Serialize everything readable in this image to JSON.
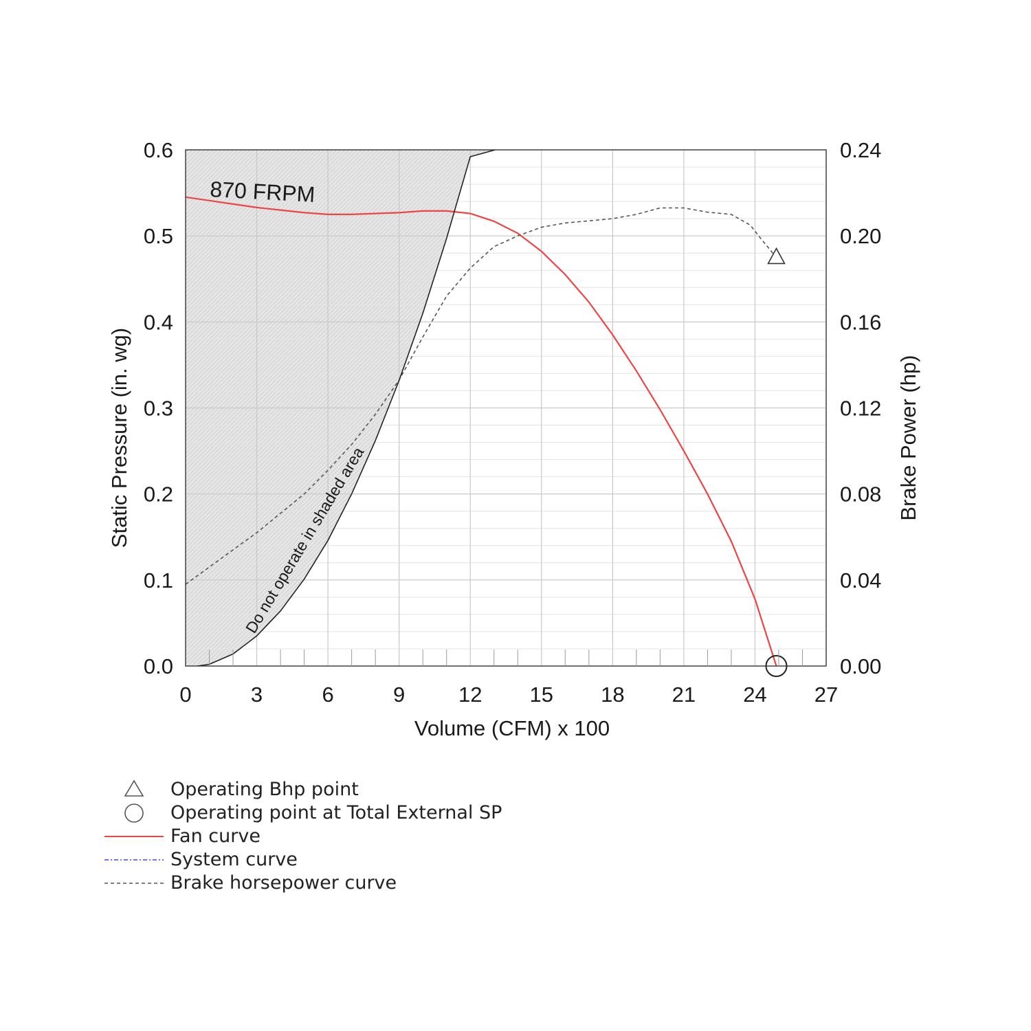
{
  "chart_data": {
    "type": "line",
    "xlabel": "Volume (CFM) x 100",
    "ylabel_left": "Static Pressure (in. wg)",
    "ylabel_right": "Brake Power (hp)",
    "xlim": [
      0,
      27
    ],
    "ylim_left": [
      0,
      0.6
    ],
    "ylim_right": [
      0,
      0.24
    ],
    "x_ticks": [
      "0",
      "3",
      "6",
      "9",
      "12",
      "15",
      "18",
      "21",
      "24",
      "27"
    ],
    "y_left_ticks": [
      "0.0",
      "0.1",
      "0.2",
      "0.3",
      "0.4",
      "0.5",
      "0.6"
    ],
    "y_right_ticks": [
      "0.00",
      "0.04",
      "0.08",
      "0.12",
      "0.16",
      "0.20",
      "0.24"
    ],
    "grid": true,
    "annotations": {
      "speed": "870 FRPM",
      "shaded_area": "Do not operate in shaded area"
    },
    "series": [
      {
        "name": "Fan curve",
        "axis": "left",
        "color": "#ee4444",
        "style": "solid",
        "points": [
          [
            0,
            0.545
          ],
          [
            1,
            0.541
          ],
          [
            2,
            0.537
          ],
          [
            3,
            0.533
          ],
          [
            4,
            0.53
          ],
          [
            5,
            0.527
          ],
          [
            6,
            0.525
          ],
          [
            7,
            0.525
          ],
          [
            8,
            0.526
          ],
          [
            9,
            0.527
          ],
          [
            10,
            0.529
          ],
          [
            11,
            0.529
          ],
          [
            12,
            0.526
          ],
          [
            13,
            0.517
          ],
          [
            14,
            0.503
          ],
          [
            15,
            0.482
          ],
          [
            16,
            0.455
          ],
          [
            17,
            0.423
          ],
          [
            18,
            0.385
          ],
          [
            19,
            0.343
          ],
          [
            20,
            0.298
          ],
          [
            21,
            0.25
          ],
          [
            22,
            0.2
          ],
          [
            23,
            0.145
          ],
          [
            24,
            0.078
          ],
          [
            24.9,
            0.0
          ]
        ]
      },
      {
        "name": "Brake horsepower curve",
        "axis": "right",
        "color": "#555555",
        "style": "dashed",
        "points": [
          [
            0,
            0.038
          ],
          [
            1,
            0.046
          ],
          [
            2,
            0.054
          ],
          [
            3,
            0.062
          ],
          [
            4,
            0.071
          ],
          [
            5,
            0.08
          ],
          [
            6,
            0.091
          ],
          [
            7,
            0.103
          ],
          [
            8,
            0.117
          ],
          [
            9,
            0.133
          ],
          [
            10,
            0.153
          ],
          [
            11,
            0.172
          ],
          [
            12,
            0.185
          ],
          [
            13,
            0.195
          ],
          [
            14,
            0.2
          ],
          [
            15,
            0.204
          ],
          [
            16,
            0.206
          ],
          [
            17,
            0.207
          ],
          [
            18,
            0.208
          ],
          [
            19,
            0.21
          ],
          [
            20,
            0.213
          ],
          [
            21,
            0.213
          ],
          [
            22,
            0.211
          ],
          [
            23,
            0.21
          ],
          [
            23.8,
            0.205
          ],
          [
            24.3,
            0.198
          ],
          [
            24.9,
            0.19
          ]
        ]
      },
      {
        "name": "Do not operate boundary",
        "axis": "left",
        "color": "#222222",
        "style": "solid",
        "points": [
          [
            0.5,
            0.0
          ],
          [
            1,
            0.002
          ],
          [
            2,
            0.014
          ],
          [
            3,
            0.035
          ],
          [
            4,
            0.064
          ],
          [
            5,
            0.101
          ],
          [
            6,
            0.146
          ],
          [
            7,
            0.2
          ],
          [
            8,
            0.262
          ],
          [
            9,
            0.332
          ],
          [
            10,
            0.41
          ],
          [
            11,
            0.497
          ],
          [
            12,
            0.592
          ],
          [
            13.05,
            0.6
          ]
        ]
      }
    ],
    "markers": [
      {
        "label": "Operating Bhp point",
        "shape": "triangle",
        "axis": "right",
        "x": 24.9,
        "y": 0.19
      },
      {
        "label": "Operating point at Total External SP",
        "shape": "circle",
        "axis": "left",
        "x": 24.9,
        "y": 0.0
      }
    ],
    "legend": {
      "placement": "bottom-left",
      "items": [
        {
          "symbol": "triangle",
          "label": "Operating Bhp point"
        },
        {
          "symbol": "circle",
          "label": "Operating point at Total External SP"
        },
        {
          "symbol": "line-red",
          "label": "Fan curve"
        },
        {
          "symbol": "line-blue-dashdot",
          "label": "System curve"
        },
        {
          "symbol": "line-gray-dashed",
          "label": "Brake horsepower curve"
        }
      ]
    }
  },
  "colors": {
    "fan_curve": "#ee4444",
    "system_curve": "#4444ee",
    "bhp_curve": "#555555",
    "shaded_area": "#e2e2e2",
    "grid": "#cccccc"
  }
}
